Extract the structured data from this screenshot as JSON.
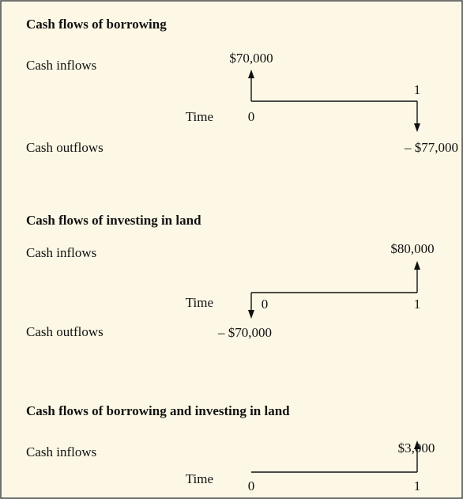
{
  "sections": [
    {
      "title": "Cash flows of borrowing",
      "inflow_label": "Cash inflows",
      "outflow_label": "Cash outflows",
      "time_label": "Time",
      "periods": [
        "0",
        "1"
      ],
      "inflow": "$70,000",
      "outflow": "– $77,000"
    },
    {
      "title": "Cash flows of investing in land",
      "inflow_label": "Cash inflows",
      "outflow_label": "Cash outflows",
      "time_label": "Time",
      "periods": [
        "0",
        "1"
      ],
      "inflow": "$80,000",
      "outflow": "– $70,000"
    },
    {
      "title": "Cash flows of borrowing and investing in land",
      "inflow_label": "Cash inflows",
      "time_label": "Time",
      "periods": [
        "0",
        "1"
      ],
      "inflow": "$3,000"
    }
  ]
}
